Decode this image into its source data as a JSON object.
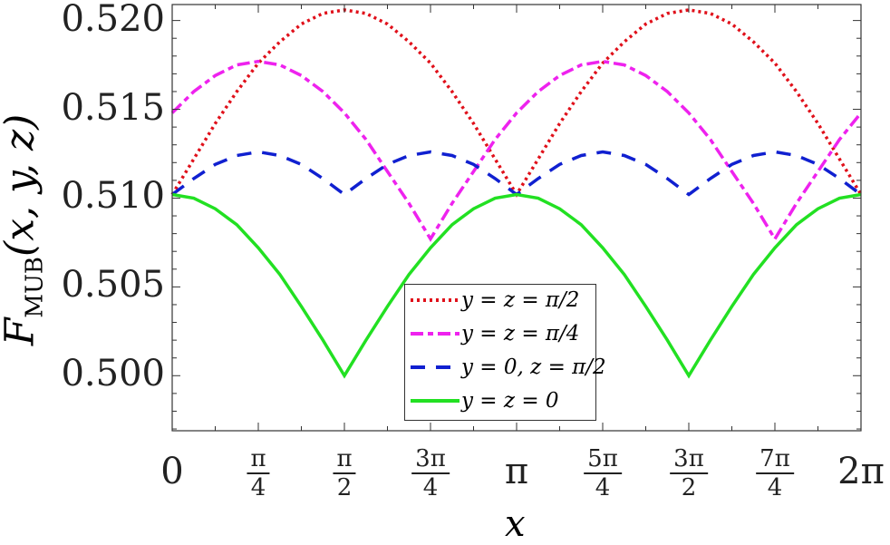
{
  "chart_data": {
    "type": "line",
    "title": "",
    "xlabel": "x",
    "ylabel": "F_MUB(x, y, z)",
    "ylabel_main": "F",
    "ylabel_sub": "MUB",
    "ylabel_args": "(x, y, z)",
    "x_unit": "pi",
    "xlim": [
      0,
      2
    ],
    "ylim": [
      0.4969,
      0.5209
    ],
    "x_ticks": [
      {
        "value": 0,
        "label": "0"
      },
      {
        "value": 0.25,
        "num": "π",
        "den": "4"
      },
      {
        "value": 0.5,
        "num": "π",
        "den": "2"
      },
      {
        "value": 0.75,
        "num": "3π",
        "den": "4"
      },
      {
        "value": 1,
        "label": "π"
      },
      {
        "value": 1.25,
        "num": "5π",
        "den": "4"
      },
      {
        "value": 1.5,
        "num": "3π",
        "den": "2"
      },
      {
        "value": 1.75,
        "num": "7π",
        "den": "4"
      },
      {
        "value": 2,
        "label": "2π"
      }
    ],
    "y_ticks": [
      {
        "value": 0.5,
        "label": "0.500"
      },
      {
        "value": 0.505,
        "label": "0.505"
      },
      {
        "value": 0.51,
        "label": "0.510"
      },
      {
        "value": 0.515,
        "label": "0.515"
      },
      {
        "value": 0.52,
        "label": "0.520"
      }
    ],
    "x": [
      0,
      0.0625,
      0.125,
      0.1875,
      0.25,
      0.3125,
      0.375,
      0.4375,
      0.5,
      0.5625,
      0.625,
      0.6875,
      0.75,
      0.8125,
      0.875,
      0.9375,
      1,
      1.0625,
      1.125,
      1.1875,
      1.25,
      1.3125,
      1.375,
      1.4375,
      1.5,
      1.5625,
      1.625,
      1.6875,
      1.75,
      1.8125,
      1.875,
      1.9375,
      2
    ],
    "series": [
      {
        "name": "y = z = π/2",
        "color": "#e0101a",
        "dash": "3,4",
        "values": [
          0.5102,
          0.5122,
          0.5142,
          0.516,
          0.5176,
          0.5188,
          0.5198,
          0.5204,
          0.5206,
          0.5204,
          0.5198,
          0.5188,
          0.5176,
          0.516,
          0.5142,
          0.5122,
          0.5102,
          0.5122,
          0.5142,
          0.516,
          0.5176,
          0.5188,
          0.5198,
          0.5204,
          0.5206,
          0.5204,
          0.5198,
          0.5188,
          0.5176,
          0.516,
          0.5142,
          0.5122,
          0.5102
        ]
      },
      {
        "name": "y = z = π/4",
        "color": "#ee22ee",
        "dash": "14,5,6,5",
        "values": [
          0.5148,
          0.516,
          0.5169,
          0.5175,
          0.5177,
          0.5175,
          0.5169,
          0.516,
          0.5148,
          0.5133,
          0.5115,
          0.5097,
          0.5077,
          0.5097,
          0.5115,
          0.5133,
          0.5148,
          0.516,
          0.5169,
          0.5175,
          0.5177,
          0.5175,
          0.5169,
          0.516,
          0.5148,
          0.5133,
          0.5115,
          0.5097,
          0.5077,
          0.5097,
          0.5115,
          0.5133,
          0.5148
        ]
      },
      {
        "name": "y = 0, z = π/2",
        "color": "#1020d0",
        "dash": "16,12",
        "values": [
          0.5102,
          0.5111,
          0.5119,
          0.5124,
          0.5126,
          0.5124,
          0.5119,
          0.5111,
          0.5102,
          0.5111,
          0.5119,
          0.5124,
          0.5126,
          0.5124,
          0.5119,
          0.5111,
          0.5102,
          0.5111,
          0.5119,
          0.5124,
          0.5126,
          0.5124,
          0.5119,
          0.5111,
          0.5102,
          0.5111,
          0.5119,
          0.5124,
          0.5126,
          0.5124,
          0.5119,
          0.5111,
          0.5102
        ]
      },
      {
        "name": "y = z = 0",
        "color": "#22e022",
        "dash": "",
        "values": [
          0.5102,
          0.51,
          0.5094,
          0.5085,
          0.5072,
          0.5057,
          0.5039,
          0.502,
          0.5,
          0.502,
          0.5039,
          0.5057,
          0.5072,
          0.5085,
          0.5094,
          0.51,
          0.5102,
          0.51,
          0.5094,
          0.5085,
          0.5072,
          0.5057,
          0.5039,
          0.502,
          0.5,
          0.502,
          0.5039,
          0.5057,
          0.5072,
          0.5085,
          0.5094,
          0.51,
          0.5102
        ]
      }
    ],
    "legend_position": "bottom-center",
    "grid": false
  }
}
